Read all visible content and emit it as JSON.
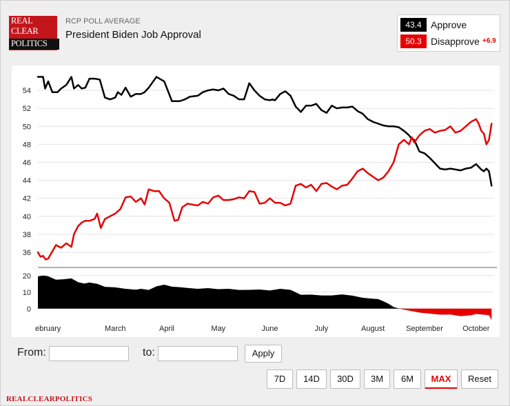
{
  "header": {
    "logo_lines": [
      "REAL",
      "CLEAR",
      "POLITICS"
    ],
    "subtitle": "RCP POLL AVERAGE",
    "title": "President Biden Job Approval"
  },
  "legend": {
    "approve": {
      "value": "43.4",
      "label": "Approve",
      "color": "#000000"
    },
    "disapprove": {
      "value": "50.3",
      "label": "Disapprove",
      "color": "#e60000"
    },
    "spread": "+6.9"
  },
  "controls": {
    "from_label": "From:",
    "to_label": "to:",
    "from_value": "",
    "to_value": "",
    "apply_label": "Apply",
    "ranges": [
      "7D",
      "14D",
      "30D",
      "3M",
      "6M",
      "MAX",
      "Reset"
    ],
    "active_range": "MAX"
  },
  "footer": "REALCLEARPOLITICS",
  "chart_data": [
    {
      "type": "line",
      "title": "",
      "xlabel": "",
      "ylabel": "",
      "x_tick_labels": [
        "ebruary",
        "March",
        "April",
        "May",
        "June",
        "July",
        "August",
        "September",
        "October"
      ],
      "x_tick_positions": [
        0.5,
        1.5,
        2.5,
        3.5,
        4.5,
        5.5,
        6.5,
        7.5,
        8.5
      ],
      "xlim": [
        0.0,
        8.85
      ],
      "ylim": [
        35,
        56
      ],
      "y_ticks": [
        36,
        38,
        40,
        42,
        44,
        46,
        48,
        50,
        52,
        54
      ],
      "grid": true,
      "series": [
        {
          "name": "Approve",
          "color": "#000000",
          "x": [
            0.0,
            0.1,
            0.14,
            0.2,
            0.28,
            0.38,
            0.45,
            0.55,
            0.65,
            0.7,
            0.78,
            0.85,
            0.92,
            1.0,
            1.1,
            1.2,
            1.3,
            1.4,
            1.5,
            1.55,
            1.62,
            1.7,
            1.8,
            1.9,
            2.0,
            2.07,
            2.15,
            2.3,
            2.45,
            2.6,
            2.75,
            2.85,
            2.95,
            3.1,
            3.2,
            3.3,
            3.4,
            3.5,
            3.6,
            3.7,
            3.8,
            3.9,
            4.0,
            4.1,
            4.2,
            4.3,
            4.4,
            4.5,
            4.55,
            4.6,
            4.7,
            4.8,
            4.9,
            5.0,
            5.1,
            5.2,
            5.3,
            5.4,
            5.5,
            5.6,
            5.7,
            5.8,
            5.9,
            6.0,
            6.1,
            6.2,
            6.3,
            6.4,
            6.5,
            6.6,
            6.7,
            6.8,
            6.9,
            7.0,
            7.1,
            7.2,
            7.25,
            7.3,
            7.4,
            7.5,
            7.6,
            7.7,
            7.8,
            7.9,
            8.0,
            8.1,
            8.2,
            8.3,
            8.4,
            8.5,
            8.55,
            8.6,
            8.65,
            8.7,
            8.75,
            8.8
          ],
          "values": [
            55.5,
            55.5,
            54.2,
            55.0,
            53.8,
            53.8,
            54.2,
            54.6,
            55.5,
            54.2,
            54.6,
            54.2,
            54.3,
            55.3,
            55.3,
            55.2,
            53.2,
            53.0,
            53.2,
            53.8,
            53.5,
            54.3,
            53.3,
            53.6,
            53.6,
            53.8,
            54.3,
            55.5,
            55.0,
            52.8,
            52.8,
            53.0,
            53.3,
            53.4,
            53.8,
            54.0,
            54.1,
            54.0,
            54.2,
            53.6,
            53.4,
            53.0,
            53.0,
            54.8,
            54.0,
            53.4,
            53.0,
            52.9,
            53.0,
            52.9,
            53.6,
            53.9,
            53.4,
            52.2,
            51.6,
            52.3,
            52.3,
            52.5,
            51.8,
            51.5,
            52.3,
            52.0,
            52.1,
            52.1,
            52.2,
            51.7,
            51.4,
            50.8,
            50.5,
            50.3,
            50.1,
            50.0,
            50.0,
            49.9,
            49.5,
            49.0,
            48.6,
            48.5,
            47.2,
            47.0,
            46.5,
            45.9,
            45.3,
            45.2,
            45.3,
            45.2,
            45.1,
            45.3,
            45.4,
            45.8,
            45.5,
            45.2,
            45.0,
            45.3,
            45.0,
            43.4
          ]
        },
        {
          "name": "Disapprove",
          "color": "#e60000",
          "x": [
            0.0,
            0.05,
            0.1,
            0.15,
            0.2,
            0.28,
            0.35,
            0.45,
            0.55,
            0.65,
            0.7,
            0.78,
            0.85,
            0.92,
            1.0,
            1.1,
            1.15,
            1.22,
            1.3,
            1.4,
            1.5,
            1.6,
            1.7,
            1.8,
            1.9,
            2.0,
            2.07,
            2.15,
            2.25,
            2.35,
            2.45,
            2.55,
            2.65,
            2.72,
            2.8,
            2.9,
            3.0,
            3.1,
            3.2,
            3.3,
            3.4,
            3.5,
            3.6,
            3.7,
            3.8,
            3.9,
            4.0,
            4.1,
            4.2,
            4.3,
            4.4,
            4.5,
            4.6,
            4.7,
            4.8,
            4.9,
            5.0,
            5.1,
            5.2,
            5.3,
            5.4,
            5.5,
            5.6,
            5.7,
            5.8,
            5.9,
            6.0,
            6.1,
            6.2,
            6.3,
            6.4,
            6.5,
            6.6,
            6.7,
            6.8,
            6.9,
            7.0,
            7.1,
            7.2,
            7.25,
            7.3,
            7.4,
            7.5,
            7.6,
            7.7,
            7.8,
            7.9,
            8.0,
            8.1,
            8.2,
            8.3,
            8.4,
            8.5,
            8.55,
            8.6,
            8.65,
            8.7,
            8.75,
            8.8
          ],
          "values": [
            36.0,
            35.5,
            35.6,
            35.2,
            35.3,
            36.1,
            36.8,
            36.5,
            37.0,
            36.6,
            38.0,
            38.9,
            39.3,
            39.5,
            39.5,
            39.7,
            40.3,
            38.7,
            39.7,
            40.0,
            40.3,
            40.8,
            42.1,
            42.2,
            41.6,
            42.0,
            41.3,
            43.0,
            42.8,
            42.8,
            42.0,
            41.5,
            39.5,
            39.6,
            41.0,
            41.4,
            41.3,
            41.2,
            41.6,
            41.4,
            42.1,
            42.3,
            41.8,
            41.8,
            41.9,
            42.1,
            42.0,
            42.8,
            42.7,
            41.4,
            41.5,
            42.0,
            41.5,
            41.5,
            41.2,
            41.4,
            43.4,
            43.6,
            43.2,
            43.5,
            42.8,
            43.6,
            43.7,
            43.3,
            43.0,
            43.4,
            43.5,
            44.2,
            45.0,
            45.3,
            44.8,
            44.4,
            44.0,
            44.3,
            45.0,
            46.0,
            48.0,
            48.5,
            48.0,
            48.8,
            48.2,
            49.0,
            49.5,
            49.7,
            49.3,
            49.5,
            49.6,
            50.0,
            49.3,
            49.5,
            50.0,
            50.5,
            50.8,
            50.3,
            49.5,
            49.2,
            48.0,
            48.5,
            50.3
          ]
        }
      ]
    },
    {
      "type": "area",
      "title": "",
      "xlabel": "",
      "ylabel": "",
      "name": "Spread",
      "xlim": [
        0.0,
        8.85
      ],
      "ylim": [
        -3,
        22
      ],
      "y_ticks": [
        0,
        10,
        20
      ],
      "positive_color": "#000000",
      "negative_color": "#e60000",
      "x": [
        0.0,
        0.1,
        0.2,
        0.35,
        0.5,
        0.65,
        0.78,
        0.9,
        1.0,
        1.15,
        1.3,
        1.5,
        1.7,
        1.9,
        2.0,
        2.15,
        2.3,
        2.45,
        2.6,
        2.75,
        2.9,
        3.1,
        3.3,
        3.5,
        3.7,
        3.9,
        4.1,
        4.3,
        4.5,
        4.7,
        4.9,
        5.1,
        5.3,
        5.5,
        5.7,
        5.9,
        6.1,
        6.3,
        6.5,
        6.6,
        6.7,
        6.8,
        6.85,
        6.9,
        7.0,
        7.2,
        7.4,
        7.6,
        7.8,
        8.0,
        8.2,
        8.4,
        8.5,
        8.6,
        8.7,
        8.75,
        8.8
      ],
      "values": [
        19.5,
        20.0,
        19.6,
        17.5,
        17.8,
        18.3,
        16.0,
        15.2,
        15.8,
        15.0,
        13.2,
        12.9,
        12.0,
        11.5,
        12.0,
        11.3,
        13.5,
        14.5,
        13.3,
        13.0,
        12.5,
        12.0,
        12.4,
        11.8,
        12.0,
        11.3,
        11.4,
        11.6,
        11.0,
        12.0,
        11.4,
        8.4,
        8.5,
        8.0,
        8.0,
        8.6,
        7.9,
        6.6,
        6.0,
        5.8,
        4.5,
        3.0,
        2.0,
        1.0,
        0.2,
        -1.2,
        -2.4,
        -3.0,
        -3.6,
        -3.5,
        -4.5,
        -4.0,
        -3.2,
        -3.5,
        -3.8,
        -4.0,
        -6.9
      ]
    }
  ]
}
